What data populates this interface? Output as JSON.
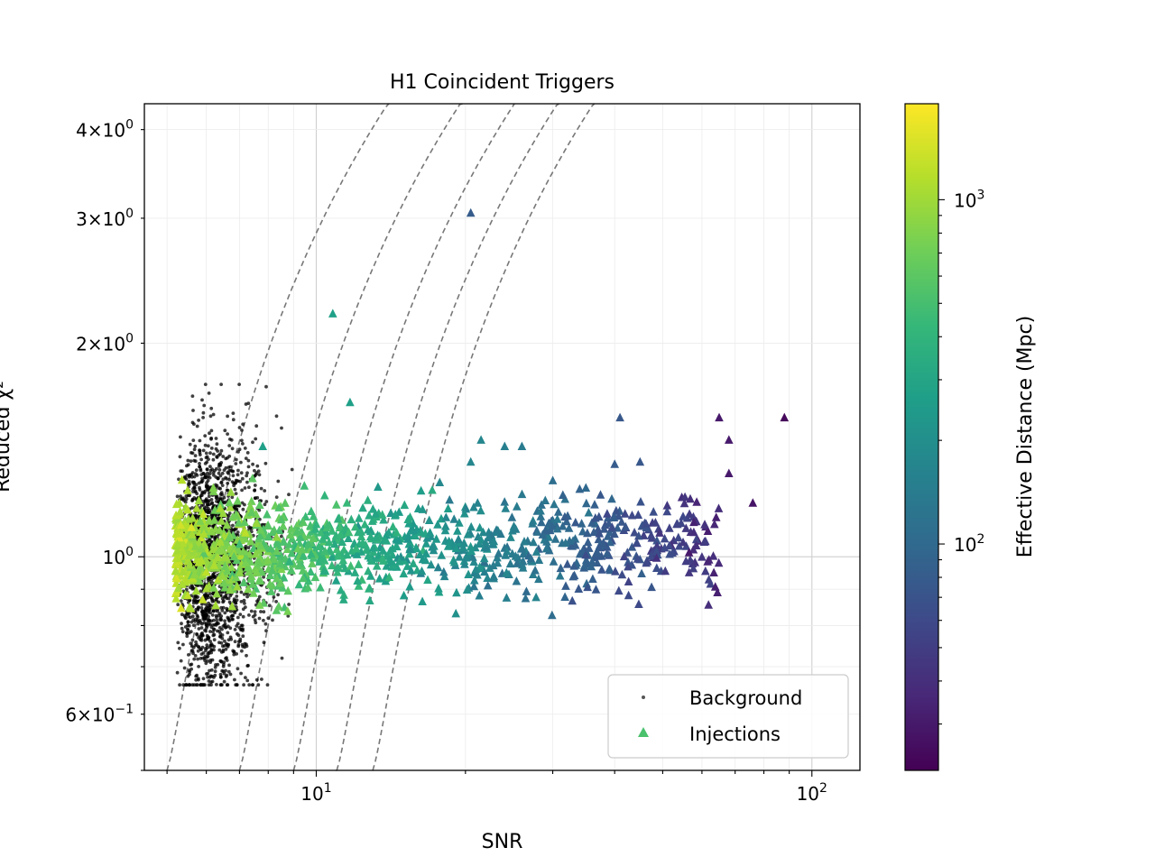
{
  "chart_data": {
    "type": "scatter",
    "title": "H1 Coincident Triggers",
    "xlabel": "SNR",
    "ylabel": "Reduced χ²",
    "xscale": "log",
    "yscale": "log",
    "xlim": [
      4.5,
      125
    ],
    "ylim": [
      0.5,
      4.35
    ],
    "x_ticks": [
      {
        "value": 10,
        "base": "10",
        "exp": "1"
      },
      {
        "value": 100,
        "base": "10",
        "exp": "2"
      }
    ],
    "y_ticks": [
      {
        "value": 0.6,
        "mant": "6",
        "exp": "−1"
      },
      {
        "value": 1,
        "mant": "",
        "exp": "0"
      },
      {
        "value": 2,
        "mant": "2",
        "exp": "0"
      },
      {
        "value": 3,
        "mant": "3",
        "exp": "0"
      },
      {
        "value": 4,
        "mant": "4",
        "exp": "0"
      }
    ],
    "grid": true,
    "legend": {
      "placement": "lower-right",
      "entries": [
        {
          "label": "Background",
          "marker": "circle",
          "color": "#555555"
        },
        {
          "label": "Injections",
          "marker": "triangle",
          "color": "#4ac16d"
        }
      ]
    },
    "colorbar": {
      "label": "Effective Distance (Mpc)",
      "scale": "log",
      "range": [
        22,
        1900
      ],
      "ticks": [
        {
          "value": 100,
          "base": "10",
          "exp": "2"
        },
        {
          "value": 1000,
          "base": "10",
          "exp": "3"
        }
      ],
      "colormap": [
        "#440154",
        "#482878",
        "#3e4989",
        "#31688e",
        "#26828e",
        "#1f9e89",
        "#35b779",
        "#6ece58",
        "#b5de2b",
        "#fde725"
      ]
    },
    "contours": {
      "style": "dashed",
      "color": "#777777",
      "snr_start": [
        5.0,
        7.0,
        9.0,
        11.0,
        13.0
      ],
      "chi_min": 0.5,
      "chi_max": 4.35
    },
    "background": {
      "name": "Background",
      "snr_range": [
        5.2,
        9.0
      ],
      "chi_range": [
        0.66,
        1.75
      ],
      "count": 1800
    },
    "injections": {
      "name": "Injections",
      "snr_range": [
        5.2,
        90
      ],
      "chi_range": [
        0.77,
        2.2
      ],
      "count": 1200,
      "highlighted_points": [
        {
          "snr": 20.5,
          "chi": 3.05,
          "dist": 80
        },
        {
          "snr": 10.8,
          "chi": 2.2,
          "dist": 270
        },
        {
          "snr": 11.7,
          "chi": 1.65,
          "dist": 270
        },
        {
          "snr": 41,
          "chi": 1.57,
          "dist": 75
        },
        {
          "snr": 65,
          "chi": 1.57,
          "dist": 30
        },
        {
          "snr": 88,
          "chi": 1.57,
          "dist": 24
        },
        {
          "snr": 68,
          "chi": 1.46,
          "dist": 30
        },
        {
          "snr": 68,
          "chi": 1.31,
          "dist": 30
        },
        {
          "snr": 76,
          "chi": 1.19,
          "dist": 28
        },
        {
          "snr": 21.5,
          "chi": 1.46,
          "dist": 170
        },
        {
          "snr": 24,
          "chi": 1.43,
          "dist": 150
        },
        {
          "snr": 26,
          "chi": 1.43,
          "dist": 140
        },
        {
          "snr": 20.5,
          "chi": 1.36,
          "dist": 170
        },
        {
          "snr": 40,
          "chi": 1.35,
          "dist": 80
        },
        {
          "snr": 45,
          "chi": 1.36,
          "dist": 75
        },
        {
          "snr": 30,
          "chi": 1.28,
          "dist": 110
        },
        {
          "snr": 35,
          "chi": 1.25,
          "dist": 100
        },
        {
          "snr": 62,
          "chi": 0.99,
          "dist": 35
        },
        {
          "snr": 7.8,
          "chi": 1.43,
          "dist": 270
        },
        {
          "snr": 5.6,
          "chi": 1.1,
          "dist": 1500
        },
        {
          "snr": 5.5,
          "chi": 1.24,
          "dist": 1100
        },
        {
          "snr": 5.9,
          "chi": 0.87,
          "dist": 1300
        },
        {
          "snr": 6.2,
          "chi": 1.25,
          "dist": 800
        }
      ]
    }
  }
}
